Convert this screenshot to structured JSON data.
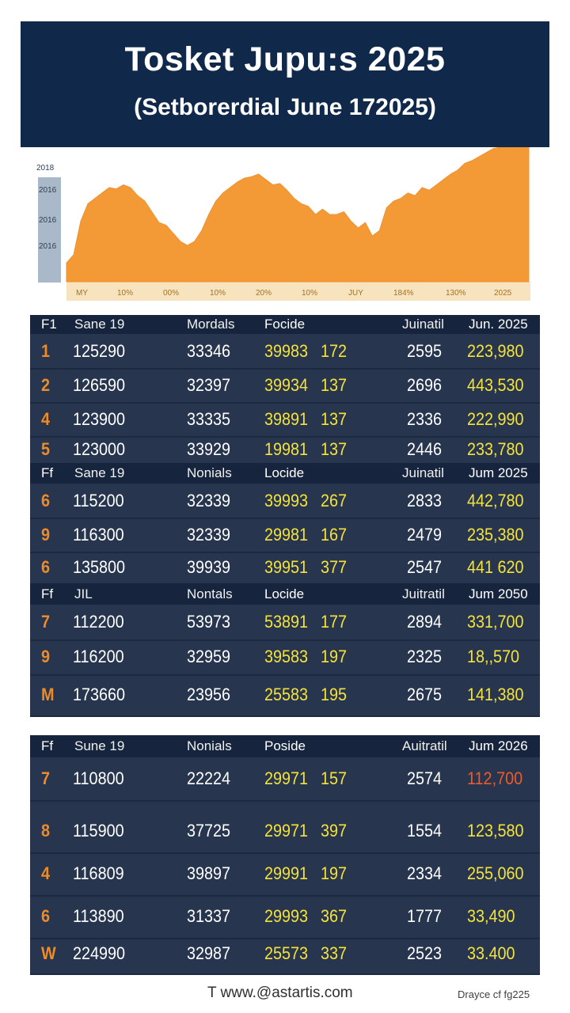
{
  "banner": {
    "title": "Tosket Jupu:s 2025",
    "subtitle": "(Setborerdial June 172025)"
  },
  "chart_data": {
    "type": "area",
    "title": "",
    "color": "#f39a37",
    "ytick_labels": [
      "2018",
      "2016",
      "2016",
      "2016"
    ],
    "xtick_labels": [
      "MY",
      "10%",
      "00%",
      "10%",
      "20%",
      "10%",
      "JUY",
      "184%",
      "130%",
      "2025"
    ],
    "values": [
      0.14,
      0.2,
      0.45,
      0.58,
      0.62,
      0.66,
      0.7,
      0.69,
      0.72,
      0.7,
      0.64,
      0.6,
      0.52,
      0.44,
      0.42,
      0.36,
      0.3,
      0.27,
      0.3,
      0.38,
      0.5,
      0.6,
      0.66,
      0.7,
      0.74,
      0.77,
      0.78,
      0.8,
      0.76,
      0.72,
      0.73,
      0.68,
      0.62,
      0.58,
      0.56,
      0.5,
      0.54,
      0.5,
      0.5,
      0.52,
      0.45,
      0.4,
      0.44,
      0.34,
      0.38,
      0.55,
      0.6,
      0.62,
      0.66,
      0.64,
      0.7,
      0.68,
      0.72,
      0.76,
      0.8,
      0.83,
      0.88,
      0.9,
      0.93,
      0.96,
      0.99,
      1.0,
      1.0,
      1.0,
      1.0,
      1.0
    ]
  },
  "tables": [
    {
      "sections": [
        {
          "header": [
            "F1",
            "Sane 19",
            "Mordals",
            "Focide",
            "",
            "Juinatil",
            "Jun. 2025"
          ],
          "rows": [
            [
              "1",
              "125290",
              "33346",
              "39983",
              "172",
              "2595",
              "223,980"
            ],
            [
              "2",
              "126590",
              "32397",
              "39934",
              "137",
              "2696",
              "443,530"
            ],
            [
              "4",
              "123900",
              "33335",
              "39891",
              "137",
              "2336",
              "222,990"
            ],
            [
              "5",
              "123000",
              "33929",
              "19981",
              "137",
              "2446",
              "233,780"
            ]
          ]
        },
        {
          "header": [
            "Ff",
            "Sane 19",
            "Nonials",
            "Locide",
            "",
            "Juinatil",
            "Jum 2025"
          ],
          "rows": [
            [
              "6",
              "115200",
              "32339",
              "39993",
              "267",
              "2833",
              "442,780"
            ],
            [
              "9",
              "116300",
              "32339",
              "29981",
              "167",
              "2479",
              "235,380"
            ],
            [
              "6",
              "135800",
              "39939",
              "39951",
              "377",
              "2547",
              "441 620"
            ]
          ]
        },
        {
          "header": [
            "Ff",
            "JIL",
            "Nontals",
            "Locide",
            "",
            "Juitratil",
            "Jum 2050"
          ],
          "rows": [
            [
              "7",
              "112200",
              "53973",
              "53891",
              "177",
              "2894",
              "331,700"
            ],
            [
              "9",
              "116200",
              "32959",
              "39583",
              "197",
              "2325",
              "18,,570"
            ],
            [
              "M",
              "173660",
              "23956",
              "25583",
              "195",
              "2675",
              "141,380"
            ]
          ]
        }
      ]
    },
    {
      "sections": [
        {
          "header": [
            "Ff",
            "Sune 19",
            "Nonials",
            "Poside",
            "",
            "Auitratil",
            "Jum 2026"
          ],
          "rows": [
            [
              "7",
              "110800",
              "22224",
              "29971",
              "157",
              "2574",
              "112,700"
            ],
            [
              "8",
              "115900",
              "37725",
              "29971",
              "397",
              "1554",
              "123,580"
            ],
            [
              "4",
              "116809",
              "39897",
              "29991",
              "197",
              "2334",
              "255,060"
            ],
            [
              "6",
              "113890",
              "31337",
              "29993",
              "367",
              "1777",
              "33,490"
            ],
            [
              "W",
              "224990",
              "32987",
              "25573",
              "337",
              "2523",
              "33.400"
            ]
          ]
        }
      ]
    }
  ],
  "footer": {
    "site": "T www.@astartis.com",
    "credit": "Drayce cf fg225"
  }
}
